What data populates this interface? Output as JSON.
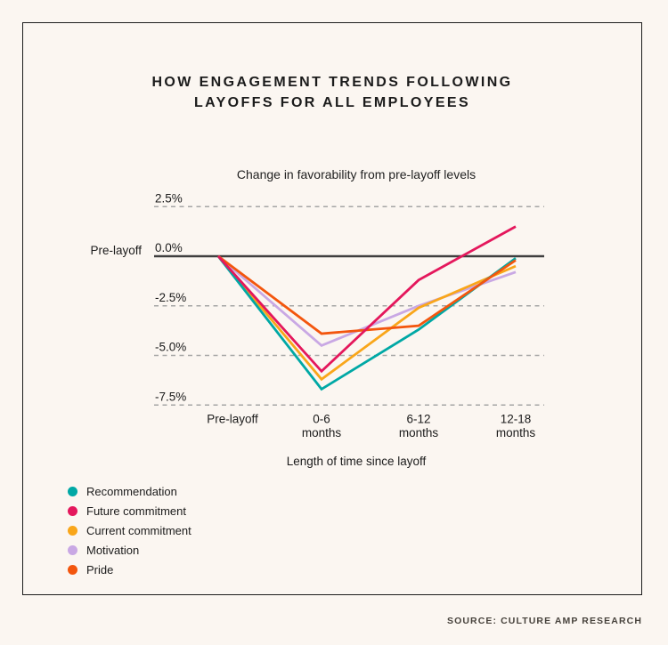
{
  "title": {
    "line1": "HOW ENGAGEMENT TRENDS FOLLOWING",
    "line2": "LAYOFFS FOR ALL EMPLOYEES"
  },
  "chart_data": {
    "type": "line",
    "title": "How engagement trends following layoffs for all employees",
    "subtitle": "Change in favorability from pre-layoff levels",
    "xlabel": "Length of time since layoff",
    "ylabel": "",
    "categories": [
      "Pre-layoff",
      "0-6 months",
      "6-12 months",
      "12-18 months"
    ],
    "x_tick_lines": [
      [
        "Pre-layoff"
      ],
      [
        "0-6",
        "months"
      ],
      [
        "6-12",
        "months"
      ],
      [
        "12-18",
        "months"
      ]
    ],
    "y_ticks": [
      {
        "value": 2.5,
        "label": "2.5%"
      },
      {
        "value": 0.0,
        "label": "0.0%"
      },
      {
        "value": -2.5,
        "label": "-2.5%"
      },
      {
        "value": -5.0,
        "label": "-5.0%"
      },
      {
        "value": -7.5,
        "label": "-7.5%"
      }
    ],
    "baseline_label": "Pre-layoff",
    "ylim": [
      -8.8,
      3.8
    ],
    "grid": "horizontal-dashed",
    "legend_position": "bottom-left",
    "series": [
      {
        "name": "Recommendation",
        "color": "#00a8a5",
        "values": [
          0,
          -6.7,
          -3.7,
          -0.1
        ]
      },
      {
        "name": "Future commitment",
        "color": "#e4175c",
        "values": [
          0,
          -5.8,
          -1.2,
          1.5
        ]
      },
      {
        "name": "Current commitment",
        "color": "#f9a61a",
        "values": [
          0,
          -6.2,
          -2.6,
          -0.5
        ]
      },
      {
        "name": "Motivation",
        "color": "#c9a8e4",
        "values": [
          0,
          -4.5,
          -2.5,
          -0.8
        ]
      },
      {
        "name": "Pride",
        "color": "#f3560e",
        "values": [
          0,
          -3.9,
          -3.5,
          -0.2
        ]
      }
    ]
  },
  "colors": {
    "background": "#fbf6f1",
    "card_border": "#1c1c1c",
    "zero_line": "#3f3f3f",
    "gridline": "#a5a5a5",
    "text": "#1b1b1b"
  },
  "source": "SOURCE: CULTURE AMP RESEARCH"
}
